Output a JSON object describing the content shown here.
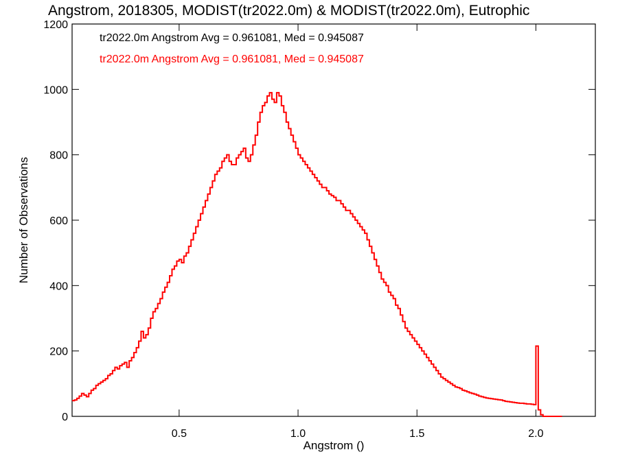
{
  "chart_data": {
    "type": "histogram-step",
    "title": "Angstrom, 2018305, MODIST(tr2022.0m) & MODIST(tr2022.0m), Eutrophic",
    "xlabel": "Angstrom ()",
    "ylabel": "Number of Observations",
    "xlim": [
      0.05,
      2.25
    ],
    "ylim": [
      0,
      1200
    ],
    "x_ticks": [
      0.5,
      1.0,
      1.5,
      2.0
    ],
    "x_tick_labels": [
      "0.5",
      "1.0",
      "1.5",
      "2.0"
    ],
    "y_ticks": [
      0,
      200,
      400,
      600,
      800,
      1000,
      1200
    ],
    "y_tick_labels": [
      "0",
      "200",
      "400",
      "600",
      "800",
      "1000",
      "1200"
    ],
    "bin_width": 0.01,
    "bin_start": 0.05,
    "legend": [
      {
        "text": "tr2022.0m Angstrom Avg = 0.961081, Med = 0.945087",
        "color": "#000000"
      },
      {
        "text": "tr2022.0m Angstrom Avg = 0.961081, Med = 0.945087",
        "color": "#ff0000"
      }
    ],
    "series": [
      {
        "color": "#ff0000",
        "values": [
          48,
          50,
          55,
          62,
          70,
          65,
          60,
          70,
          80,
          85,
          95,
          100,
          105,
          110,
          115,
          125,
          130,
          140,
          150,
          145,
          155,
          160,
          165,
          150,
          170,
          180,
          195,
          210,
          230,
          260,
          240,
          250,
          270,
          300,
          320,
          330,
          345,
          360,
          380,
          395,
          410,
          430,
          450,
          460,
          475,
          480,
          470,
          490,
          500,
          520,
          540,
          560,
          580,
          600,
          620,
          640,
          660,
          680,
          700,
          720,
          740,
          750,
          760,
          780,
          790,
          800,
          780,
          770,
          770,
          790,
          800,
          810,
          820,
          790,
          780,
          800,
          830,
          860,
          900,
          930,
          950,
          960,
          980,
          990,
          970,
          960,
          990,
          980,
          950,
          930,
          900,
          880,
          860,
          840,
          820,
          800,
          790,
          780,
          770,
          760,
          750,
          740,
          730,
          720,
          710,
          700,
          700,
          690,
          680,
          675,
          670,
          660,
          660,
          650,
          640,
          630,
          630,
          620,
          610,
          600,
          590,
          580,
          570,
          560,
          540,
          520,
          500,
          480,
          460,
          440,
          420,
          410,
          400,
          380,
          370,
          360,
          340,
          330,
          310,
          290,
          270,
          260,
          250,
          240,
          230,
          220,
          210,
          200,
          190,
          180,
          170,
          160,
          150,
          140,
          130,
          120,
          115,
          110,
          105,
          100,
          95,
          90,
          88,
          85,
          80,
          78,
          75,
          72,
          70,
          68,
          65,
          62,
          60,
          58,
          56,
          55,
          54,
          53,
          52,
          51,
          50,
          48,
          46,
          45,
          44,
          43,
          42,
          41,
          40,
          40,
          39,
          38,
          38,
          37,
          36,
          215,
          20,
          5,
          0,
          0,
          0,
          0,
          0,
          0,
          0,
          0
        ]
      }
    ]
  }
}
